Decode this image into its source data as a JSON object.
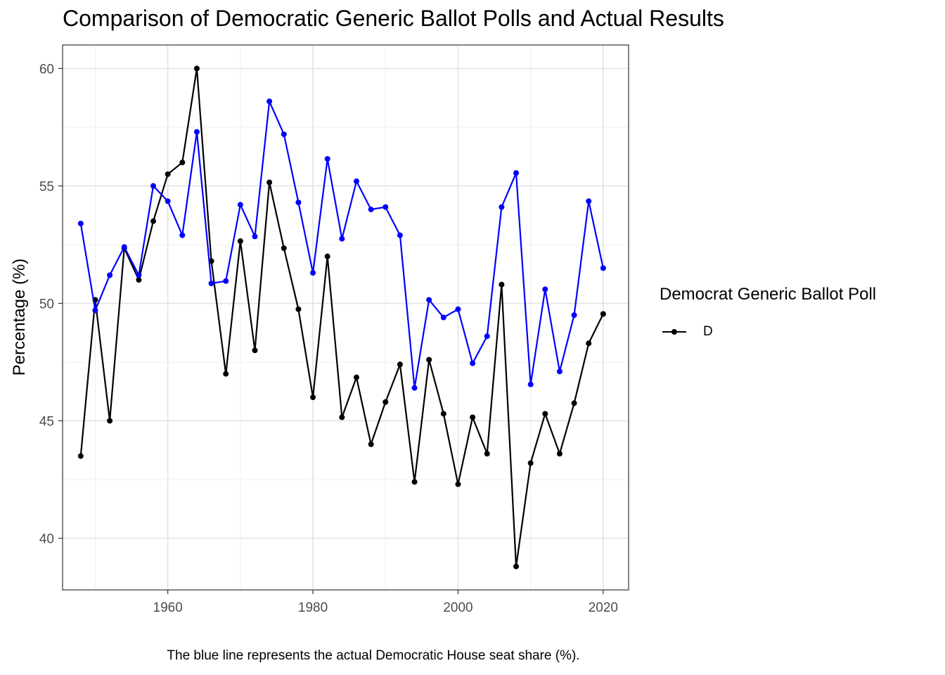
{
  "chart_data": {
    "type": "line",
    "title": "Comparison of Democratic Generic Ballot Polls and Actual Results",
    "xlabel": "",
    "ylabel": "Percentage (%)",
    "caption": "The blue line represents the actual Democratic House seat share (%).",
    "xlim": [
      1945.5,
      2023.5
    ],
    "ylim": [
      37.8,
      61.0
    ],
    "x_ticks": [
      1960,
      1980,
      2000,
      2020
    ],
    "y_ticks": [
      40,
      45,
      50,
      55,
      60
    ],
    "grid": true,
    "legend": {
      "title": "Democrat Generic Ballot Poll",
      "placement": "right",
      "entries": [
        "D"
      ]
    },
    "x": [
      1948,
      1950,
      1952,
      1954,
      1956,
      1958,
      1960,
      1962,
      1964,
      1966,
      1968,
      1970,
      1972,
      1974,
      1976,
      1978,
      1980,
      1982,
      1984,
      1986,
      1988,
      1990,
      1992,
      1994,
      1996,
      1998,
      2000,
      2002,
      2004,
      2006,
      2008,
      2010,
      2012,
      2014,
      2016,
      2018,
      2020
    ],
    "series": [
      {
        "name": "D",
        "color": "#000000",
        "values": [
          43.5,
          50.15,
          45.0,
          52.35,
          51.0,
          53.5,
          55.5,
          56.0,
          60.0,
          51.8,
          47.0,
          52.65,
          48.0,
          55.15,
          52.35,
          49.75,
          46.0,
          52.0,
          45.15,
          46.85,
          44.0,
          45.8,
          47.4,
          42.4,
          47.6,
          45.3,
          42.3,
          45.15,
          43.6,
          50.8,
          38.8,
          43.2,
          45.3,
          43.6,
          45.75,
          48.3,
          49.55
        ]
      },
      {
        "color": "#0000ff",
        "values": [
          53.4,
          49.7,
          51.2,
          52.4,
          51.2,
          55.0,
          54.35,
          52.9,
          57.3,
          50.85,
          50.95,
          54.2,
          52.85,
          58.6,
          57.2,
          54.3,
          51.3,
          56.15,
          52.75,
          55.2,
          54.0,
          54.1,
          52.9,
          46.4,
          50.15,
          49.4,
          49.75,
          47.45,
          48.6,
          54.1,
          55.55,
          46.55,
          50.6,
          47.1,
          49.5,
          54.35,
          51.5
        ]
      }
    ]
  }
}
